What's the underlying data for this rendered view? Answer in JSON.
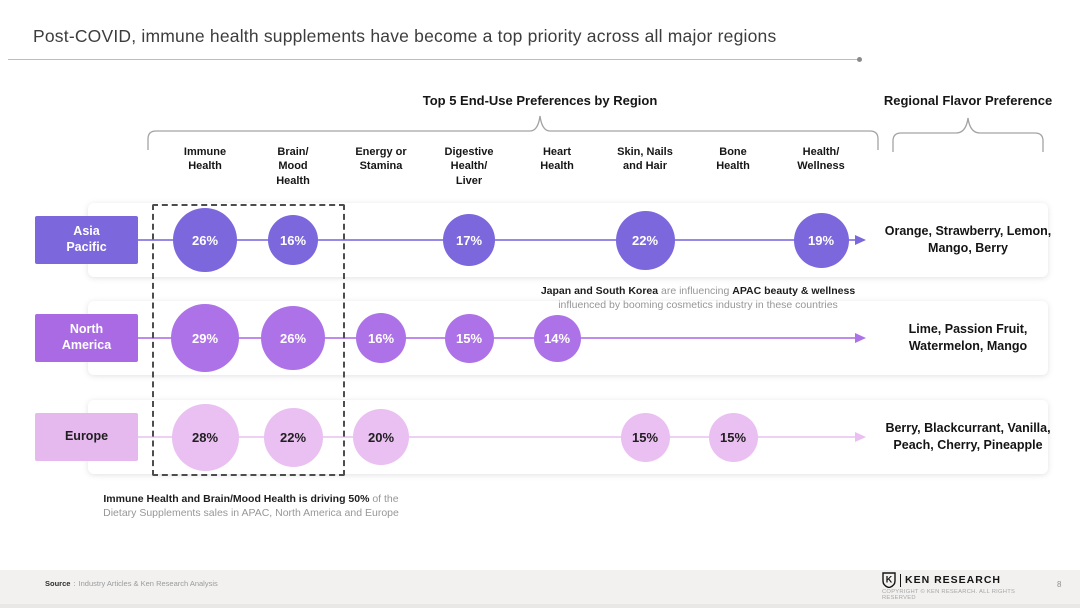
{
  "title": "Post-COVID, immune health supplements have become a top priority across all major regions",
  "sections": {
    "main": "Top 5 End-Use Preferences by Region",
    "flavor": "Regional Flavor Preference"
  },
  "columns": [
    "Immune\nHealth",
    "Brain/\nMood\nHealth",
    "Energy or\nStamina",
    "Digestive\nHealth/\nLiver",
    "Heart\nHealth",
    "Skin, Nails\nand Hair",
    "Bone\nHealth",
    "Health/\nWellness"
  ],
  "rows": [
    {
      "region": "Asia\nPacific",
      "flavors": "Orange, Strawberry, Lemon, Mango, Berry",
      "colors": {
        "box": "#7c67dc",
        "bubble": "#7c67dc",
        "line": "#978ae4",
        "arrow": "#7c67dc",
        "text": "#ffffff",
        "region_text": "#ffffff"
      }
    },
    {
      "region": "North\nAmerica",
      "flavors": "Lime, Passion Fruit, Watermelon, Mango",
      "colors": {
        "box": "#a96ae3",
        "bubble": "#ad72e7",
        "line": "#bf8cec",
        "arrow": "#ad72e7",
        "text": "#ffffff",
        "region_text": "#ffffff"
      }
    },
    {
      "region": "Europe",
      "flavors": "Berry, Blackcurrant, Vanilla, Peach, Cherry, Pineapple",
      "colors": {
        "box": "#e5b8ee",
        "bubble": "#eabff2",
        "line": "#eed0f5",
        "arrow": "#eabff2",
        "text": "#1f1f1f",
        "region_text": "#1f1f1f"
      }
    }
  ],
  "chart_data": {
    "type": "table",
    "encoding": "bubble-size-proportional-to-percent",
    "title": "Top 5 End-Use Preferences by Region",
    "rows": [
      "Asia Pacific",
      "North America",
      "Europe"
    ],
    "columns": [
      "Immune Health",
      "Brain/Mood Health",
      "Energy or Stamina",
      "Digestive Health/Liver",
      "Heart Health",
      "Skin, Nails and Hair",
      "Bone Health",
      "Health/Wellness"
    ],
    "values": [
      [
        26,
        16,
        null,
        17,
        null,
        22,
        null,
        19
      ],
      [
        29,
        26,
        16,
        15,
        14,
        null,
        null,
        null
      ],
      [
        28,
        22,
        20,
        null,
        null,
        15,
        15,
        null
      ]
    ],
    "value_unit": "%",
    "flavor_preferences": {
      "Asia Pacific": "Orange, Strawberry, Lemon, Mango, Berry",
      "North America": "Lime, Passion Fruit, Watermelon, Mango",
      "Europe": "Berry, Blackcurrant, Vanilla, Peach, Cherry, Pineapple"
    }
  },
  "annotations": {
    "apac": {
      "segments": [
        {
          "text": "Japan and South Korea",
          "bold": true
        },
        {
          "text": " are influencing ",
          "bold": false
        },
        {
          "text": "APAC beauty & wellness",
          "bold": true
        }
      ],
      "line2": "influenced by booming cosmetics industry in these countries"
    },
    "driving": {
      "segments": [
        {
          "text": "Immune Health and Brain/Mood Health is driving 50%",
          "bold": true
        },
        {
          "text": " of the",
          "bold": false
        }
      ],
      "line2": "Dietary Supplements sales in APAC, North America and Europe"
    }
  },
  "footer": {
    "source_label": "Source",
    "source_sep": ":",
    "source_text": "Industry Articles & Ken Research Analysis",
    "logo_text": "KEN RESEARCH",
    "copyright": "COPYRIGHT © KEN RESEARCH. ALL RIGHTS RESERVED",
    "page_number": "8"
  }
}
